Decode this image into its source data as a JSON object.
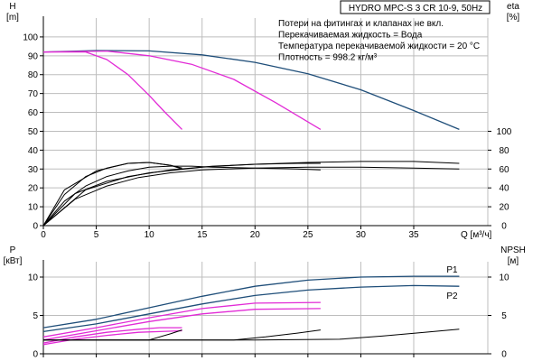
{
  "chart_data": [
    {
      "type": "line",
      "title": "HYDRO MPC-S 3 CR 10-9, 50Hz",
      "notes": [
        "Потери на фитингах и клапанах не вкл.",
        "Перекачиваемая жидкость = Вода",
        "Температура перекачиваемой жидкости = 20 °C",
        "Плотность = 998.2 кг/м³"
      ],
      "xlabel": "Q [м³/ч]",
      "xlim": [
        0,
        42
      ],
      "xticks": [
        0,
        5,
        10,
        15,
        20,
        25,
        30,
        35
      ],
      "ylabel_left": [
        "H",
        "[m]"
      ],
      "ylim_left": [
        0,
        110
      ],
      "yticks_left": [
        0,
        10,
        20,
        30,
        40,
        50,
        60,
        70,
        80,
        90,
        100
      ],
      "ylabel_right": [
        "eta",
        "[%]"
      ],
      "ylim_right": [
        0,
        220
      ],
      "yticks_right": [
        0,
        20,
        40,
        60,
        80,
        100
      ],
      "grid": true,
      "series": [
        {
          "axis": "left",
          "color": "#1f4e79",
          "x": [
            0,
            5,
            10,
            15,
            20,
            25,
            30,
            35,
            39.3
          ],
          "y": [
            92,
            92.8,
            92.6,
            90.5,
            86.5,
            80.5,
            72,
            61,
            51
          ]
        },
        {
          "axis": "left",
          "color": "#e22bd6",
          "x": [
            0,
            4,
            6,
            8,
            10,
            11.5,
            13.1
          ],
          "y": [
            92,
            92,
            88,
            80,
            69,
            60,
            51
          ]
        },
        {
          "axis": "left",
          "color": "#e22bd6",
          "x": [
            0,
            6,
            10,
            14,
            18,
            22,
            26.2
          ],
          "y": [
            92,
            92.5,
            90,
            85.5,
            77.5,
            65,
            51
          ]
        },
        {
          "axis": "right",
          "color": "#000000",
          "x": [
            0,
            2,
            4,
            6,
            8,
            10,
            12,
            13.1
          ],
          "y": [
            0,
            33,
            52,
            61,
            66,
            67,
            64,
            61
          ]
        },
        {
          "axis": "right",
          "color": "#000000",
          "x": [
            0,
            2,
            4,
            6,
            8,
            10,
            12,
            14,
            16,
            20,
            24,
            26.2
          ],
          "y": [
            0,
            26,
            42,
            52,
            58,
            62,
            63,
            63,
            62,
            61,
            60,
            59
          ]
        },
        {
          "axis": "right",
          "color": "#000000",
          "x": [
            0,
            3,
            6,
            9,
            12,
            15,
            20,
            25,
            30,
            35,
            39.3
          ],
          "y": [
            0,
            28,
            42,
            51,
            56,
            59,
            61,
            62,
            62,
            61,
            60
          ]
        },
        {
          "axis": "right",
          "color": "#000000",
          "x": [
            0,
            3,
            6,
            10,
            15,
            20,
            25,
            30,
            35,
            39.3
          ],
          "y": [
            0,
            34,
            47,
            56,
            62,
            65,
            67,
            68,
            68,
            66
          ]
        },
        {
          "axis": "right",
          "color": "#000000",
          "x": [
            0,
            2,
            5,
            8,
            10,
            12,
            13.1
          ],
          "y": [
            0,
            38,
            58,
            66,
            67,
            64,
            60
          ]
        },
        {
          "axis": "right",
          "color": "#000000",
          "x": [
            0,
            4,
            8,
            12,
            16,
            20,
            24,
            26.2
          ],
          "y": [
            0,
            38,
            52,
            59,
            63,
            65,
            66,
            66
          ]
        }
      ]
    },
    {
      "type": "line",
      "xlim": [
        0,
        42
      ],
      "xticks": [
        0,
        5,
        10,
        15,
        20,
        25,
        30,
        35
      ],
      "ylabel_left": [
        "P",
        "[кВт]"
      ],
      "ylim_left": [
        0,
        12
      ],
      "yticks_left": [
        0,
        5,
        10
      ],
      "ylabel_right": [
        "NPSH",
        "[м]"
      ],
      "ylim_right": [
        0,
        12
      ],
      "yticks_right": [
        0,
        5,
        10
      ],
      "grid": true,
      "series": [
        {
          "name": "P1",
          "axis": "left",
          "color": "#1f4e79",
          "x": [
            0,
            5,
            10,
            15,
            20,
            25,
            30,
            35,
            39.3
          ],
          "y": [
            3.4,
            4.5,
            6.0,
            7.5,
            8.8,
            9.6,
            10.0,
            10.1,
            10.1
          ]
        },
        {
          "name": "P2",
          "axis": "left",
          "color": "#1f4e79",
          "x": [
            0,
            5,
            10,
            15,
            20,
            25,
            30,
            35,
            39.3
          ],
          "y": [
            2.9,
            3.9,
            5.2,
            6.5,
            7.6,
            8.3,
            8.7,
            8.9,
            8.8
          ]
        },
        {
          "axis": "left",
          "color": "#e22bd6",
          "x": [
            0,
            5,
            10,
            15,
            20,
            26.2
          ],
          "y": [
            2.2,
            3.4,
            4.7,
            5.9,
            6.6,
            6.7
          ]
        },
        {
          "axis": "left",
          "color": "#e22bd6",
          "x": [
            0,
            5,
            10,
            15,
            20,
            26.2
          ],
          "y": [
            1.8,
            3.0,
            4.2,
            5.2,
            5.8,
            5.9
          ]
        },
        {
          "axis": "left",
          "color": "#e22bd6",
          "x": [
            0,
            3,
            6,
            9,
            11,
            13.1
          ],
          "y": [
            1.4,
            2.2,
            2.8,
            3.2,
            3.4,
            3.4
          ]
        },
        {
          "axis": "left",
          "color": "#e22bd6",
          "x": [
            0,
            3,
            6,
            9,
            11,
            13.1
          ],
          "y": [
            1.2,
            1.9,
            2.4,
            2.8,
            2.9,
            3.0
          ]
        },
        {
          "axis": "right",
          "color": "#000000",
          "x": [
            0,
            5,
            10,
            12,
            13.1
          ],
          "y": [
            1.8,
            1.8,
            1.8,
            2.6,
            3.1
          ]
        },
        {
          "axis": "right",
          "color": "#000000",
          "x": [
            0,
            10,
            18,
            21,
            24,
            26.2
          ],
          "y": [
            1.8,
            1.8,
            1.8,
            2.2,
            2.7,
            3.1
          ]
        },
        {
          "axis": "right",
          "color": "#000000",
          "x": [
            0,
            10,
            20,
            28,
            32,
            36,
            39.3
          ],
          "y": [
            1.8,
            1.8,
            1.8,
            1.9,
            2.3,
            2.8,
            3.2
          ]
        }
      ]
    }
  ]
}
